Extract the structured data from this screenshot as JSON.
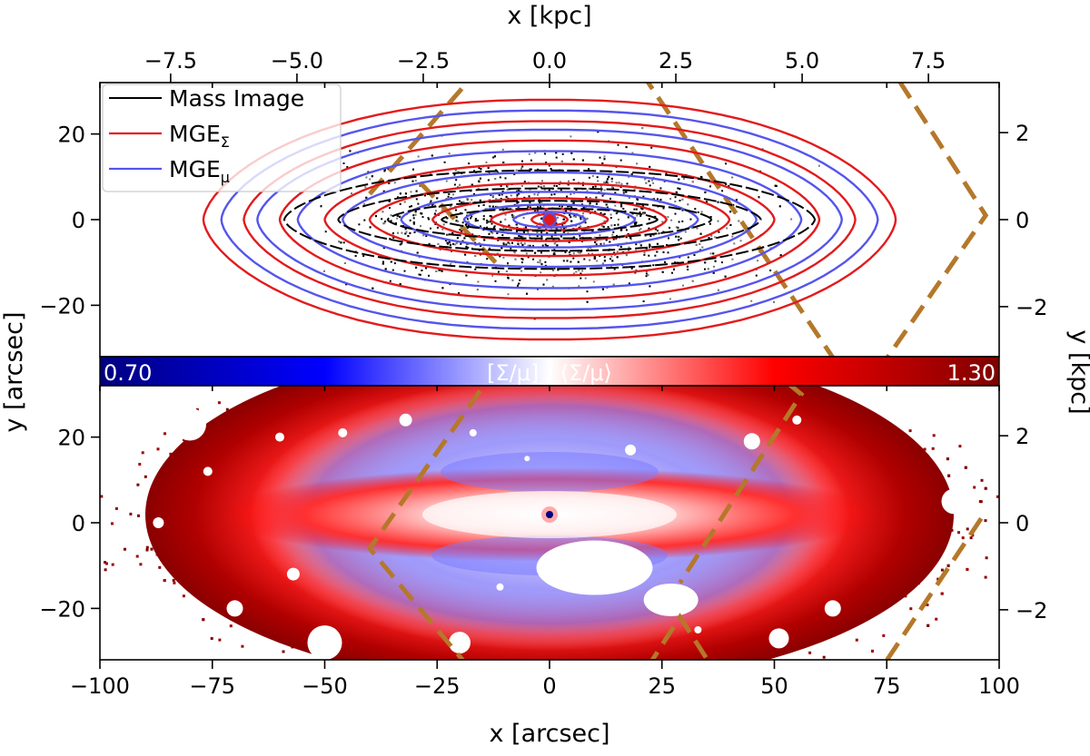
{
  "chart_data": [
    {
      "type": "contour",
      "panel": "top",
      "x_label": "x [arcsec]",
      "x_top_label": "x [kpc]",
      "y_label": "y [arcsec]",
      "y_right_label": "y [kpc]",
      "xlim": [
        -100,
        100
      ],
      "ylim": [
        -32,
        32
      ],
      "x_top_ticks": [
        -7.5,
        -5.0,
        -2.5,
        0.0,
        2.5,
        5.0,
        7.5
      ],
      "x_top_tick_labels": [
        "−7.5",
        "−5.0",
        "−2.5",
        "0.0",
        "2.5",
        "5.0",
        "7.5"
      ],
      "y_ticks": [
        -20,
        0,
        20
      ],
      "y_tick_labels": [
        "−20",
        "0",
        "20"
      ],
      "y_right_ticks": [
        -2,
        0,
        2
      ],
      "y_right_tick_labels": [
        "−2",
        "0",
        "2"
      ],
      "legend": [
        {
          "name": "Mass Image",
          "color": "#000000"
        },
        {
          "name": "MGE",
          "sub": "Σ",
          "color": "#e31a1c"
        },
        {
          "name": "MGE",
          "sub": "μ",
          "color": "#5555ee"
        }
      ],
      "contour_semi_axes": {
        "red": [
          [
            77,
            28
          ],
          [
            68,
            23
          ],
          [
            60,
            18.5
          ],
          [
            50,
            13
          ],
          [
            40,
            8.5
          ],
          [
            26,
            5
          ],
          [
            13,
            2.5
          ],
          [
            4,
            1.3
          ]
        ],
        "blue": [
          [
            73,
            25.5
          ],
          [
            65,
            21
          ],
          [
            56,
            16
          ],
          [
            46,
            11
          ],
          [
            33,
            6.5
          ],
          [
            19,
            3.5
          ],
          [
            8,
            1.8
          ]
        ]
      },
      "annotations": {
        "dashed_box_color": "#b5782a"
      }
    },
    {
      "type": "heatmap",
      "panel": "bottom",
      "colorbar_label": "[Σ/μ] / ⟨Σ/μ⟩",
      "colorbar_range": [
        0.7,
        1.3
      ],
      "colorbar_min_label": "0.70",
      "colorbar_max_label": "1.30",
      "colormap": [
        "#00007f",
        "#0000ff",
        "#ffffff",
        "#ff0000",
        "#7f0000"
      ],
      "x_ticks": [
        -100,
        -75,
        -50,
        -25,
        0,
        25,
        50,
        75,
        100
      ],
      "x_tick_labels": [
        "−100",
        "−75",
        "−50",
        "−25",
        "0",
        "25",
        "50",
        "75",
        "100"
      ],
      "y_ticks": [
        -20,
        0,
        20
      ],
      "y_tick_labels": [
        "−20",
        "0",
        "20"
      ],
      "y_right_ticks": [
        -2,
        0,
        2
      ],
      "y_right_tick_labels": [
        "−2",
        "0",
        "2"
      ],
      "xlim": [
        -100,
        100
      ],
      "ylim": [
        -32,
        32
      ]
    }
  ]
}
